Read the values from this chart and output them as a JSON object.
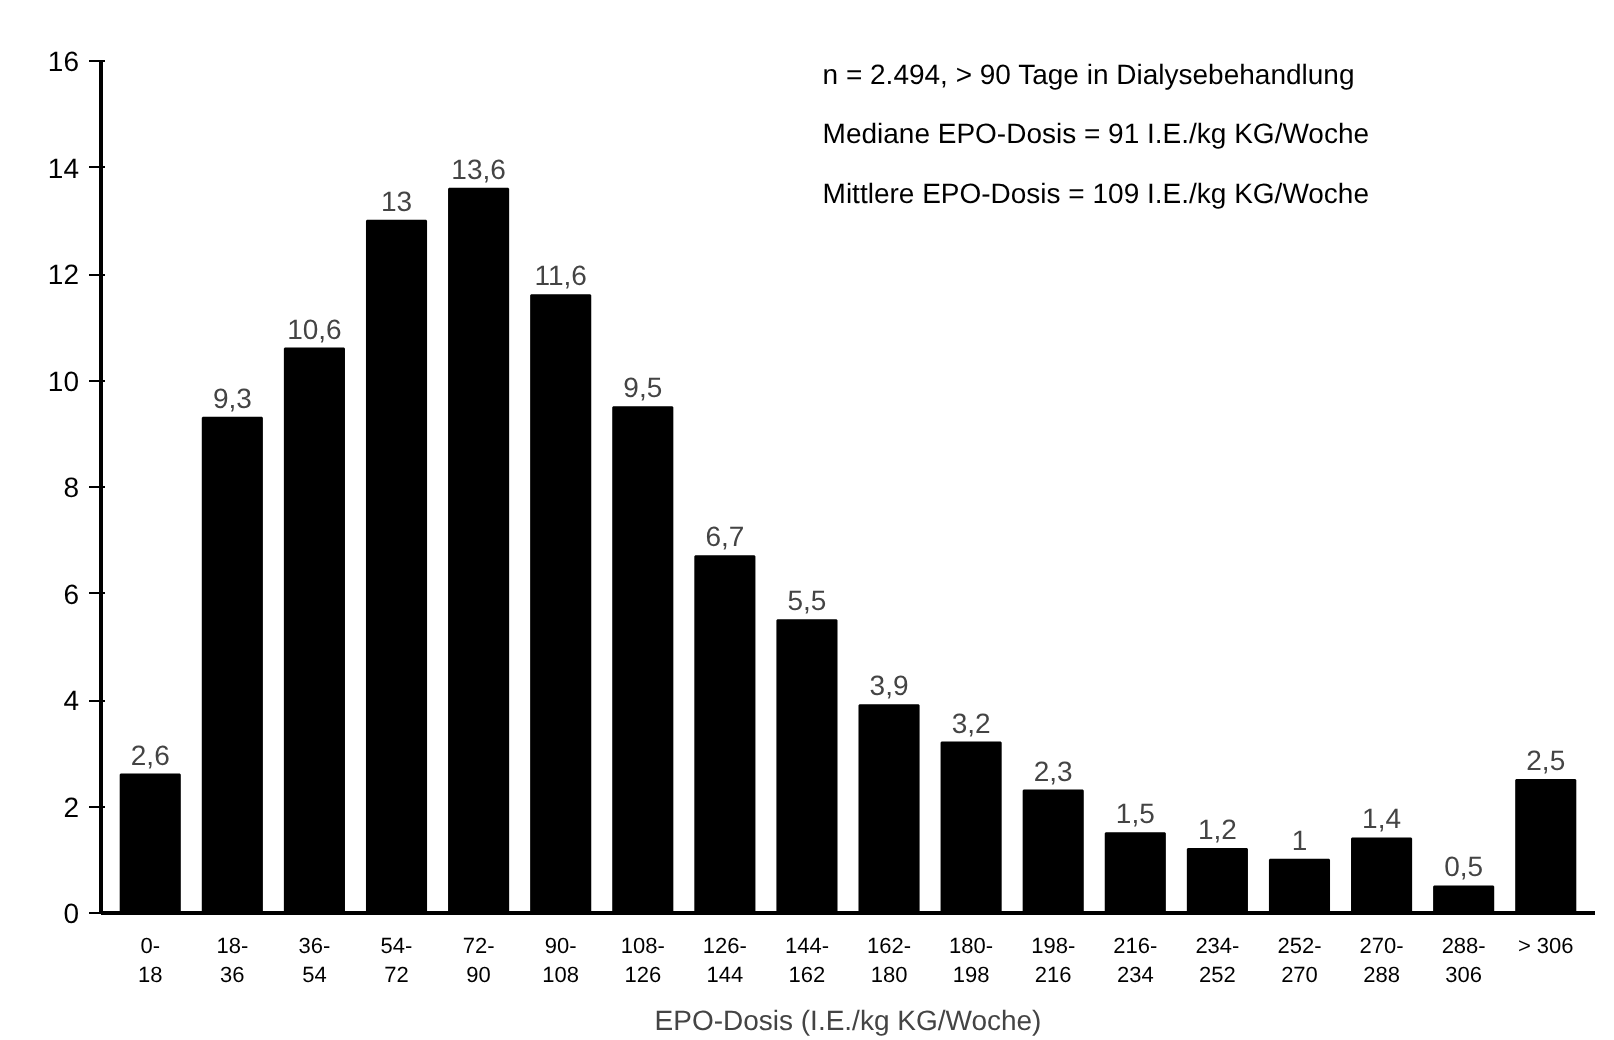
{
  "chart_data": {
    "type": "bar",
    "xlabel": "EPO-Dosis (I.E./kg KG/Woche)",
    "categories": [
      "0-\n18",
      "18-\n36",
      "36-\n54",
      "54-\n72",
      "72-\n90",
      "90-\n108",
      "108-\n126",
      "126-\n144",
      "144-\n162",
      "162-\n180",
      "180-\n198",
      "198-\n216",
      "216-\n234",
      "234-\n252",
      "252-\n270",
      "270-\n288",
      "288-\n306",
      "> 306"
    ],
    "values": [
      2.6,
      9.3,
      10.6,
      13,
      13.6,
      11.6,
      9.5,
      6.7,
      5.5,
      3.9,
      3.2,
      2.3,
      1.5,
      1.2,
      1,
      1.4,
      0.5,
      2.5
    ],
    "value_labels": [
      "2,6",
      "9,3",
      "10,6",
      "13",
      "13,6",
      "11,6",
      "9,5",
      "6,7",
      "5,5",
      "3,9",
      "3,2",
      "2,3",
      "1,5",
      "1,2",
      "1",
      "1,4",
      "0,5",
      "2,5"
    ],
    "color": "#000000",
    "ylim": [
      0,
      16
    ],
    "yticks": [
      0,
      2,
      4,
      6,
      8,
      10,
      12,
      14,
      16
    ],
    "grid": false,
    "annotations": [
      "n = 2.494, > 90 Tage in Dialysebehandlung",
      "Mediane EPO-Dosis = 91 I.E./kg KG/Woche",
      "Mittlere EPO-Dosis = 109 I.E./kg KG/Woche"
    ]
  }
}
